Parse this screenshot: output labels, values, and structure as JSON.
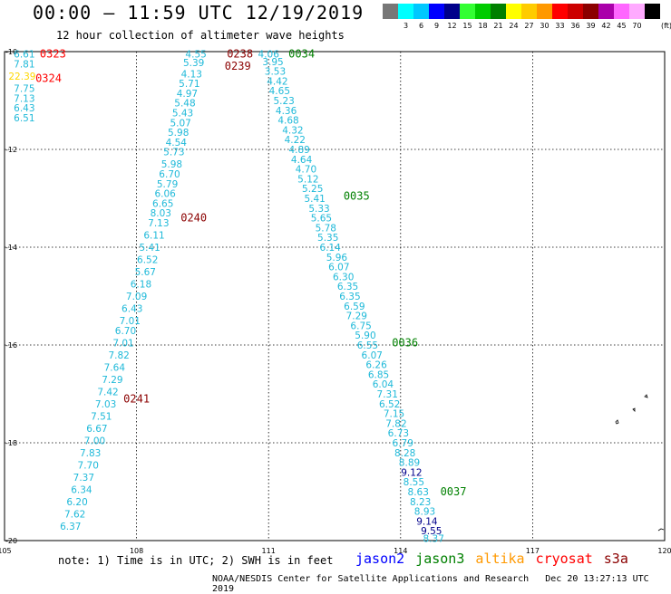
{
  "header": {
    "title": "00:00 – 11:59 UTC 12/19/2019",
    "subtitle": "12 hour collection of altimeter wave heights"
  },
  "color_scale": {
    "unit_label": "(ft)",
    "cells": [
      {
        "color": "#777777",
        "label": ""
      },
      {
        "color": "#00ffff",
        "label": "3"
      },
      {
        "color": "#00c8ff",
        "label": "6"
      },
      {
        "color": "#0000ff",
        "label": "9"
      },
      {
        "color": "#00008b",
        "label": "12"
      },
      {
        "color": "#33ff33",
        "label": "15"
      },
      {
        "color": "#00cc00",
        "label": "18"
      },
      {
        "color": "#008000",
        "label": "21"
      },
      {
        "color": "#ffff00",
        "label": "24"
      },
      {
        "color": "#ffcc00",
        "label": "27"
      },
      {
        "color": "#ff9900",
        "label": "30"
      },
      {
        "color": "#ff0000",
        "label": "33"
      },
      {
        "color": "#cc0000",
        "label": "36"
      },
      {
        "color": "#8b0000",
        "label": "39"
      },
      {
        "color": "#aa00aa",
        "label": "42"
      },
      {
        "color": "#ff66ff",
        "label": "45"
      },
      {
        "color": "#ffaaff",
        "label": "70"
      },
      {
        "color": "#000000",
        "label": ""
      }
    ]
  },
  "map": {
    "lon_range": [
      105,
      120
    ],
    "lat_range": [
      -20,
      -10
    ],
    "lon_ticks": [
      "105",
      "108",
      "111",
      "114",
      "117",
      "120"
    ],
    "lat_ticks": [
      "-10",
      "-12",
      "-14",
      "-16",
      "-18",
      "-20"
    ],
    "colors": {
      "swh_light": "#1fb9d9",
      "swh_dark": "#00008b",
      "swh_yellow": "#ffd700",
      "time_red": "#ff0000",
      "time_darkred": "#8b0000",
      "time_green": "#008000"
    }
  },
  "tracks": [
    {
      "name": "track-a",
      "points": [
        {
          "lon": 105.45,
          "lat": -10.05,
          "v": "6.61"
        },
        {
          "lon": 105.45,
          "lat": -10.25,
          "v": "7.81"
        },
        {
          "lon": 105.4,
          "lat": -10.5,
          "v": "22.39",
          "style": "swh_yellow"
        },
        {
          "lon": 105.45,
          "lat": -10.75,
          "v": "7.75"
        },
        {
          "lon": 105.45,
          "lat": -10.95,
          "v": "7.13"
        },
        {
          "lon": 105.45,
          "lat": -11.15,
          "v": "6.43"
        },
        {
          "lon": 105.45,
          "lat": -11.35,
          "v": "6.51"
        }
      ],
      "time_labels": [
        {
          "lon": 106.1,
          "lat": -10.05,
          "text": "0323",
          "style": "time_red"
        },
        {
          "lon": 106.0,
          "lat": -10.55,
          "text": "0324",
          "style": "time_red"
        }
      ]
    },
    {
      "name": "track-b",
      "points": [
        {
          "lon": 109.35,
          "lat": -10.05,
          "v": "4.55"
        },
        {
          "lon": 109.3,
          "lat": -10.22,
          "v": "5.39"
        },
        {
          "lon": 109.25,
          "lat": -10.45,
          "v": "4.13"
        },
        {
          "lon": 109.2,
          "lat": -10.65,
          "v": "5.71"
        },
        {
          "lon": 109.15,
          "lat": -10.85,
          "v": "4.97"
        },
        {
          "lon": 109.1,
          "lat": -11.05,
          "v": "5.48"
        },
        {
          "lon": 109.05,
          "lat": -11.25,
          "v": "5.43"
        },
        {
          "lon": 109.0,
          "lat": -11.45,
          "v": "5.07"
        },
        {
          "lon": 108.95,
          "lat": -11.65,
          "v": "5.98"
        },
        {
          "lon": 108.9,
          "lat": -11.85,
          "v": "4.54"
        },
        {
          "lon": 108.85,
          "lat": -12.05,
          "v": "5.73"
        },
        {
          "lon": 108.8,
          "lat": -12.3,
          "v": "5.98"
        },
        {
          "lon": 108.75,
          "lat": -12.5,
          "v": "6.70"
        },
        {
          "lon": 108.7,
          "lat": -12.7,
          "v": "5.79"
        },
        {
          "lon": 108.65,
          "lat": -12.9,
          "v": "6.06"
        },
        {
          "lon": 108.6,
          "lat": -13.1,
          "v": "6.65"
        },
        {
          "lon": 108.55,
          "lat": -13.3,
          "v": "8.03"
        },
        {
          "lon": 108.5,
          "lat": -13.5,
          "v": "7.13"
        },
        {
          "lon": 108.4,
          "lat": -13.75,
          "v": "6.11"
        },
        {
          "lon": 108.3,
          "lat": -14.0,
          "v": "5.41"
        },
        {
          "lon": 108.25,
          "lat": -14.25,
          "v": "6.52"
        },
        {
          "lon": 108.2,
          "lat": -14.5,
          "v": "5.67"
        },
        {
          "lon": 108.1,
          "lat": -14.75,
          "v": "6.18"
        },
        {
          "lon": 108.0,
          "lat": -15.0,
          "v": "7.09"
        },
        {
          "lon": 107.9,
          "lat": -15.25,
          "v": "6.43"
        },
        {
          "lon": 107.85,
          "lat": -15.5,
          "v": "7.01"
        },
        {
          "lon": 107.75,
          "lat": -15.7,
          "v": "6.70"
        },
        {
          "lon": 107.7,
          "lat": -15.95,
          "v": "7.01"
        },
        {
          "lon": 107.6,
          "lat": -16.2,
          "v": "7.82"
        },
        {
          "lon": 107.5,
          "lat": -16.45,
          "v": "7.64"
        },
        {
          "lon": 107.45,
          "lat": -16.7,
          "v": "7.29"
        },
        {
          "lon": 107.35,
          "lat": -16.95,
          "v": "7.42"
        },
        {
          "lon": 107.3,
          "lat": -17.2,
          "v": "7.03"
        },
        {
          "lon": 107.2,
          "lat": -17.45,
          "v": "7.51"
        },
        {
          "lon": 107.1,
          "lat": -17.7,
          "v": "6.67"
        },
        {
          "lon": 107.05,
          "lat": -17.95,
          "v": "7.00"
        },
        {
          "lon": 106.95,
          "lat": -18.2,
          "v": "7.83"
        },
        {
          "lon": 106.9,
          "lat": -18.45,
          "v": "7.70"
        },
        {
          "lon": 106.8,
          "lat": -18.7,
          "v": "7.37"
        },
        {
          "lon": 106.75,
          "lat": -18.95,
          "v": "6.34"
        },
        {
          "lon": 106.65,
          "lat": -19.2,
          "v": "6.20"
        },
        {
          "lon": 106.6,
          "lat": -19.45,
          "v": "7.62"
        },
        {
          "lon": 106.5,
          "lat": -19.7,
          "v": "6.37"
        }
      ],
      "time_labels": [
        {
          "lon": 110.35,
          "lat": -10.05,
          "text": "0238",
          "style": "time_darkred"
        },
        {
          "lon": 110.3,
          "lat": -10.3,
          "text": "0239",
          "style": "time_darkred"
        },
        {
          "lon": 109.3,
          "lat": -13.4,
          "text": "0240",
          "style": "time_darkred"
        },
        {
          "lon": 108.0,
          "lat": -17.1,
          "text": "0241",
          "style": "time_darkred"
        }
      ]
    },
    {
      "name": "track-c",
      "points": [
        {
          "lon": 111.0,
          "lat": -10.05,
          "v": "4.06"
        },
        {
          "lon": 111.1,
          "lat": -10.2,
          "v": "3.95"
        },
        {
          "lon": 111.15,
          "lat": -10.4,
          "v": "3.53"
        },
        {
          "lon": 111.2,
          "lat": -10.6,
          "v": "4.42"
        },
        {
          "lon": 111.25,
          "lat": -10.8,
          "v": "4.65"
        },
        {
          "lon": 111.35,
          "lat": -11.0,
          "v": "5.23"
        },
        {
          "lon": 111.4,
          "lat": -11.2,
          "v": "4.36"
        },
        {
          "lon": 111.45,
          "lat": -11.4,
          "v": "4.68"
        },
        {
          "lon": 111.55,
          "lat": -11.6,
          "v": "4.32"
        },
        {
          "lon": 111.6,
          "lat": -11.8,
          "v": "4.22"
        },
        {
          "lon": 111.7,
          "lat": -12.0,
          "v": "4.89"
        },
        {
          "lon": 111.75,
          "lat": -12.2,
          "v": "4.64"
        },
        {
          "lon": 111.85,
          "lat": -12.4,
          "v": "4.70"
        },
        {
          "lon": 111.9,
          "lat": -12.6,
          "v": "5.12"
        },
        {
          "lon": 112.0,
          "lat": -12.8,
          "v": "5.25"
        },
        {
          "lon": 112.05,
          "lat": -13.0,
          "v": "5.41"
        },
        {
          "lon": 112.15,
          "lat": -13.2,
          "v": "5.33"
        },
        {
          "lon": 112.2,
          "lat": -13.4,
          "v": "5.65"
        },
        {
          "lon": 112.3,
          "lat": -13.6,
          "v": "5.78"
        },
        {
          "lon": 112.35,
          "lat": -13.8,
          "v": "5.35"
        },
        {
          "lon": 112.4,
          "lat": -14.0,
          "v": "6.14"
        },
        {
          "lon": 112.55,
          "lat": -14.2,
          "v": "5.96"
        },
        {
          "lon": 112.6,
          "lat": -14.4,
          "v": "6.07"
        },
        {
          "lon": 112.7,
          "lat": -14.6,
          "v": "6.30"
        },
        {
          "lon": 112.8,
          "lat": -14.8,
          "v": "6.35"
        },
        {
          "lon": 112.85,
          "lat": -15.0,
          "v": "6.35"
        },
        {
          "lon": 112.95,
          "lat": -15.2,
          "v": "6.59"
        },
        {
          "lon": 113.0,
          "lat": -15.4,
          "v": "7.29"
        },
        {
          "lon": 113.1,
          "lat": -15.6,
          "v": "6.75"
        },
        {
          "lon": 113.2,
          "lat": -15.8,
          "v": "5.90"
        },
        {
          "lon": 113.25,
          "lat": -16.0,
          "v": "6.55"
        },
        {
          "lon": 113.35,
          "lat": -16.2,
          "v": "6.07"
        },
        {
          "lon": 113.45,
          "lat": -16.4,
          "v": "6.26"
        },
        {
          "lon": 113.5,
          "lat": -16.6,
          "v": "6.85"
        },
        {
          "lon": 113.6,
          "lat": -16.8,
          "v": "6.04"
        },
        {
          "lon": 113.7,
          "lat": -17.0,
          "v": "7.31"
        },
        {
          "lon": 113.75,
          "lat": -17.2,
          "v": "6.52"
        },
        {
          "lon": 113.85,
          "lat": -17.4,
          "v": "7.15"
        },
        {
          "lon": 113.9,
          "lat": -17.6,
          "v": "7.82"
        },
        {
          "lon": 113.95,
          "lat": -17.8,
          "v": "6.73"
        },
        {
          "lon": 114.05,
          "lat": -18.0,
          "v": "6.79"
        },
        {
          "lon": 114.1,
          "lat": -18.2,
          "v": "8.28"
        },
        {
          "lon": 114.2,
          "lat": -18.4,
          "v": "8.89"
        },
        {
          "lon": 114.25,
          "lat": -18.6,
          "v": "9.12",
          "style": "swh_dark"
        },
        {
          "lon": 114.3,
          "lat": -18.8,
          "v": "8.55"
        },
        {
          "lon": 114.4,
          "lat": -19.0,
          "v": "8.63"
        },
        {
          "lon": 114.45,
          "lat": -19.2,
          "v": "8.23"
        },
        {
          "lon": 114.55,
          "lat": -19.4,
          "v": "8.93"
        },
        {
          "lon": 114.6,
          "lat": -19.6,
          "v": "9.14",
          "style": "swh_dark"
        },
        {
          "lon": 114.7,
          "lat": -19.8,
          "v": "9.55",
          "style": "swh_dark"
        },
        {
          "lon": 114.75,
          "lat": -19.95,
          "v": "8.37"
        }
      ],
      "time_labels": [
        {
          "lon": 111.75,
          "lat": -10.05,
          "text": "0034",
          "style": "time_green"
        },
        {
          "lon": 113.0,
          "lat": -12.95,
          "text": "0035",
          "style": "time_green"
        },
        {
          "lon": 114.1,
          "lat": -15.95,
          "text": "0036",
          "style": "time_green"
        },
        {
          "lon": 115.2,
          "lat": -19.0,
          "text": "0037",
          "style": "time_green"
        }
      ]
    }
  ],
  "footer": {
    "note": "note: 1) Time is in UTC; 2) SWH is in feet",
    "satellites": [
      {
        "name": "jason2",
        "color": "#0000ff"
      },
      {
        "name": "jason3",
        "color": "#008000"
      },
      {
        "name": "altika",
        "color": "#ff9900"
      },
      {
        "name": "cryosat",
        "color": "#ff0000"
      },
      {
        "name": "s3a",
        "color": "#8b0000"
      }
    ],
    "credit": "NOAA/NESDIS Center for Satellite Applications and Research",
    "timestamp": "Dec 20 13:27:13 UTC 2019"
  }
}
